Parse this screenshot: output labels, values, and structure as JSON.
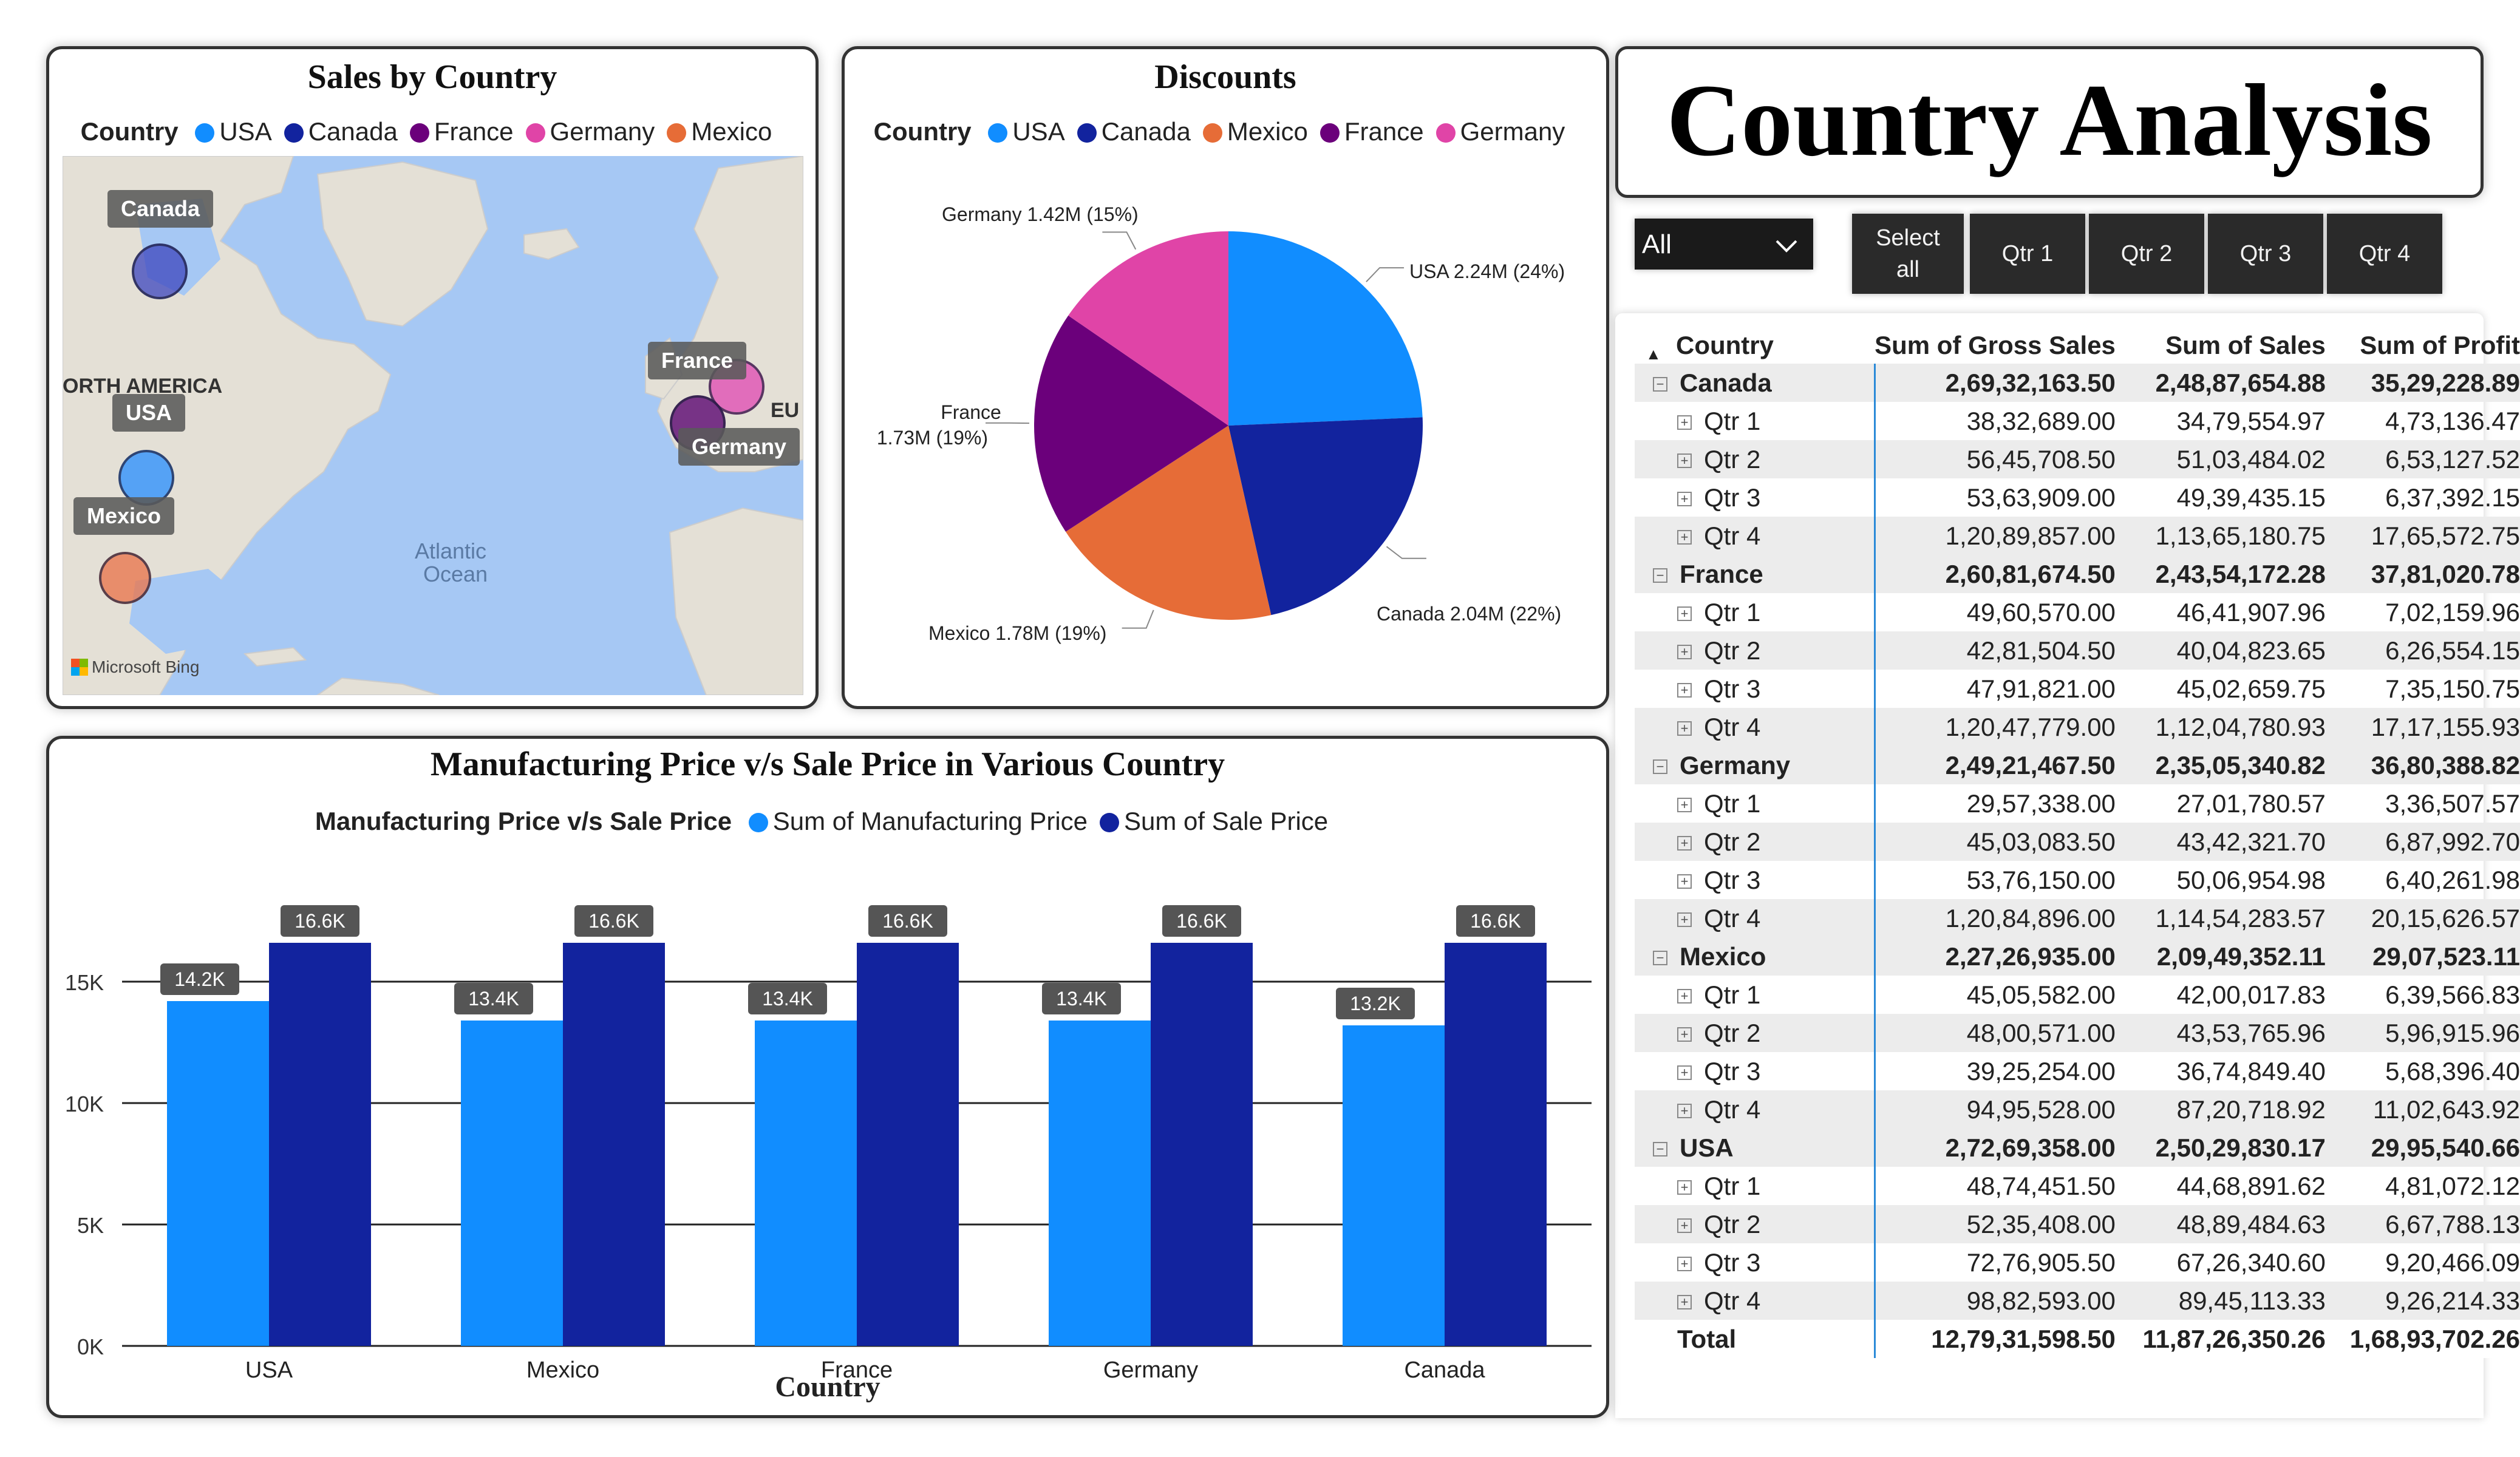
{
  "sales_map": {
    "title": "Sales by Country",
    "legend_title": "Country",
    "legend": [
      {
        "name": "USA",
        "color": "#118dff"
      },
      {
        "name": "Canada",
        "color": "#12239e"
      },
      {
        "name": "France",
        "color": "#6b007b"
      },
      {
        "name": "Germany",
        "color": "#e044a7"
      },
      {
        "name": "Mexico",
        "color": "#e66c37"
      }
    ],
    "labels": {
      "canada": "Canada",
      "usa": "USA",
      "mexico": "Mexico",
      "france": "France",
      "germany": "Germany"
    },
    "region_label": "ORTH AMERICA",
    "ocean_label_1": "Atlantic",
    "ocean_label_2": "Ocean",
    "eu_label": "EU",
    "credit": "Microsoft Bing"
  },
  "discounts": {
    "title": "Discounts",
    "legend_title": "Country",
    "legend": [
      {
        "name": "USA",
        "color": "#118dff"
      },
      {
        "name": "Canada",
        "color": "#12239e"
      },
      {
        "name": "Mexico",
        "color": "#e66c37"
      },
      {
        "name": "France",
        "color": "#6b007b"
      },
      {
        "name": "Germany",
        "color": "#e044a7"
      }
    ],
    "slice_labels": {
      "usa": "USA 2.24M (24%)",
      "canada": "Canada 2.04M (22%)",
      "mexico": "Mexico 1.78M (19%)",
      "france_1": "France",
      "france_2": "1.73M (19%)",
      "germany": "Germany 1.42M (15%)"
    }
  },
  "header": {
    "title": "Country Analysis"
  },
  "slicer": {
    "dropdown_value": "All",
    "select_all_1": "Select",
    "select_all_2": "all",
    "buttons": [
      "Qtr 1",
      "Qtr 2",
      "Qtr 3",
      "Qtr 4"
    ]
  },
  "matrix": {
    "headers": [
      "Country",
      "Sum of Gross Sales",
      "Sum of Sales",
      "Sum of Profit"
    ],
    "groups": [
      {
        "name": "Canada",
        "gross": "2,69,32,163.50",
        "sales": "2,48,87,654.88",
        "profit": "35,29,228.89",
        "rows": [
          [
            "Qtr 1",
            "38,32,689.00",
            "34,79,554.97",
            "4,73,136.47"
          ],
          [
            "Qtr 2",
            "56,45,708.50",
            "51,03,484.02",
            "6,53,127.52"
          ],
          [
            "Qtr 3",
            "53,63,909.00",
            "49,39,435.15",
            "6,37,392.15"
          ],
          [
            "Qtr 4",
            "1,20,89,857.00",
            "1,13,65,180.75",
            "17,65,572.75"
          ]
        ]
      },
      {
        "name": "France",
        "gross": "2,60,81,674.50",
        "sales": "2,43,54,172.28",
        "profit": "37,81,020.78",
        "rows": [
          [
            "Qtr 1",
            "49,60,570.00",
            "46,41,907.96",
            "7,02,159.96"
          ],
          [
            "Qtr 2",
            "42,81,504.50",
            "40,04,823.65",
            "6,26,554.15"
          ],
          [
            "Qtr 3",
            "47,91,821.00",
            "45,02,659.75",
            "7,35,150.75"
          ],
          [
            "Qtr 4",
            "1,20,47,779.00",
            "1,12,04,780.93",
            "17,17,155.93"
          ]
        ]
      },
      {
        "name": "Germany",
        "gross": "2,49,21,467.50",
        "sales": "2,35,05,340.82",
        "profit": "36,80,388.82",
        "rows": [
          [
            "Qtr 1",
            "29,57,338.00",
            "27,01,780.57",
            "3,36,507.57"
          ],
          [
            "Qtr 2",
            "45,03,083.50",
            "43,42,321.70",
            "6,87,992.70"
          ],
          [
            "Qtr 3",
            "53,76,150.00",
            "50,06,954.98",
            "6,40,261.98"
          ],
          [
            "Qtr 4",
            "1,20,84,896.00",
            "1,14,54,283.57",
            "20,15,626.57"
          ]
        ]
      },
      {
        "name": "Mexico",
        "gross": "2,27,26,935.00",
        "sales": "2,09,49,352.11",
        "profit": "29,07,523.11",
        "rows": [
          [
            "Qtr 1",
            "45,05,582.00",
            "42,00,017.83",
            "6,39,566.83"
          ],
          [
            "Qtr 2",
            "48,00,571.00",
            "43,53,765.96",
            "5,96,915.96"
          ],
          [
            "Qtr 3",
            "39,25,254.00",
            "36,74,849.40",
            "5,68,396.40"
          ],
          [
            "Qtr 4",
            "94,95,528.00",
            "87,20,718.92",
            "11,02,643.92"
          ]
        ]
      },
      {
        "name": "USA",
        "gross": "2,72,69,358.00",
        "sales": "2,50,29,830.17",
        "profit": "29,95,540.66",
        "rows": [
          [
            "Qtr 1",
            "48,74,451.50",
            "44,68,891.62",
            "4,81,072.12"
          ],
          [
            "Qtr 2",
            "52,35,408.00",
            "48,89,484.63",
            "6,67,788.13"
          ],
          [
            "Qtr 3",
            "72,76,905.50",
            "67,26,340.60",
            "9,20,466.09"
          ],
          [
            "Qtr 4",
            "98,82,593.00",
            "89,45,113.33",
            "9,26,214.33"
          ]
        ]
      }
    ],
    "total": {
      "label": "Total",
      "gross": "12,79,31,598.50",
      "sales": "11,87,26,350.26",
      "profit": "1,68,93,702.26"
    }
  },
  "chart_data": [
    {
      "type": "pie",
      "title": "Discounts",
      "categories": [
        "USA",
        "Canada",
        "Mexico",
        "France",
        "Germany"
      ],
      "values": [
        2.24,
        2.04,
        1.78,
        1.73,
        1.42
      ],
      "percent": [
        24,
        22,
        19,
        19,
        15
      ],
      "unit": "M",
      "colors": [
        "#118dff",
        "#12239e",
        "#e66c37",
        "#6b007b",
        "#e044a7"
      ]
    },
    {
      "type": "bar",
      "title": "Manufacturing Price v/s Sale Price in Various Country",
      "legend_title": "Manufacturing Price v/s Sale Price",
      "xlabel": "Country",
      "ylabel": "",
      "categories": [
        "USA",
        "Mexico",
        "France",
        "Germany",
        "Canada"
      ],
      "series": [
        {
          "name": "Sum of Manufacturing Price",
          "color": "#118dff",
          "values": [
            14200,
            13400,
            13400,
            13400,
            13200
          ],
          "labels": [
            "14.2K",
            "13.4K",
            "13.4K",
            "13.4K",
            "13.2K"
          ]
        },
        {
          "name": "Sum of Sale Price",
          "color": "#12239e",
          "values": [
            16600,
            16600,
            16600,
            16600,
            16600
          ],
          "labels": [
            "16.6K",
            "16.6K",
            "16.6K",
            "16.6K",
            "16.6K"
          ]
        }
      ],
      "ylim": [
        0,
        17500
      ],
      "yticks": [
        0,
        5000,
        10000,
        15000
      ],
      "ytick_labels": [
        "0K",
        "5K",
        "10K",
        "15K"
      ],
      "grid": true,
      "legend_position": "top"
    }
  ]
}
